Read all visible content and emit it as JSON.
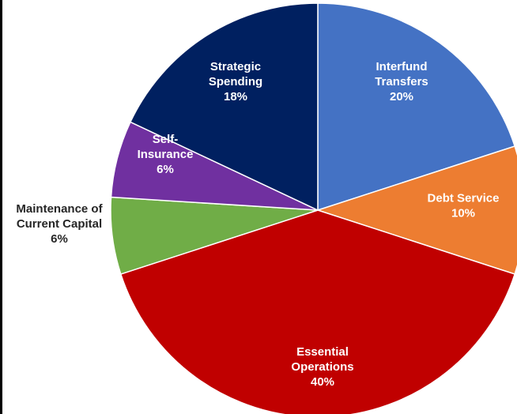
{
  "chart_data": {
    "type": "pie",
    "title": "",
    "slices": [
      {
        "name": "Interfund Transfers",
        "label_lines": [
          "Interfund",
          "Transfers"
        ],
        "pct_label": "20%",
        "value": 20,
        "color": "#4472c4",
        "label_color": "#ffffff"
      },
      {
        "name": "Debt Service",
        "label_lines": [
          "Debt Service"
        ],
        "pct_label": "10%",
        "value": 10,
        "color": "#ed7d31",
        "label_color": "#ffffff"
      },
      {
        "name": "Essential Operations",
        "label_lines": [
          "Essential",
          "Operations"
        ],
        "pct_label": "40%",
        "value": 40,
        "color": "#c00000",
        "label_color": "#ffffff"
      },
      {
        "name": "Maintenance of Current Capital",
        "label_lines": [
          "Maintenance of",
          "Current Capital"
        ],
        "pct_label": "6%",
        "value": 6,
        "color": "#70ad47",
        "label_color": "#262626"
      },
      {
        "name": "Self-Insurance",
        "label_lines": [
          "Self-",
          "Insurance"
        ],
        "pct_label": "6%",
        "value": 6,
        "color": "#7030a0",
        "label_color": "#ffffff"
      },
      {
        "name": "Strategic Spending",
        "label_lines": [
          "Strategic",
          "Spending"
        ],
        "pct_label": "18%",
        "value": 18,
        "color": "#002060",
        "label_color": "#ffffff"
      }
    ]
  }
}
